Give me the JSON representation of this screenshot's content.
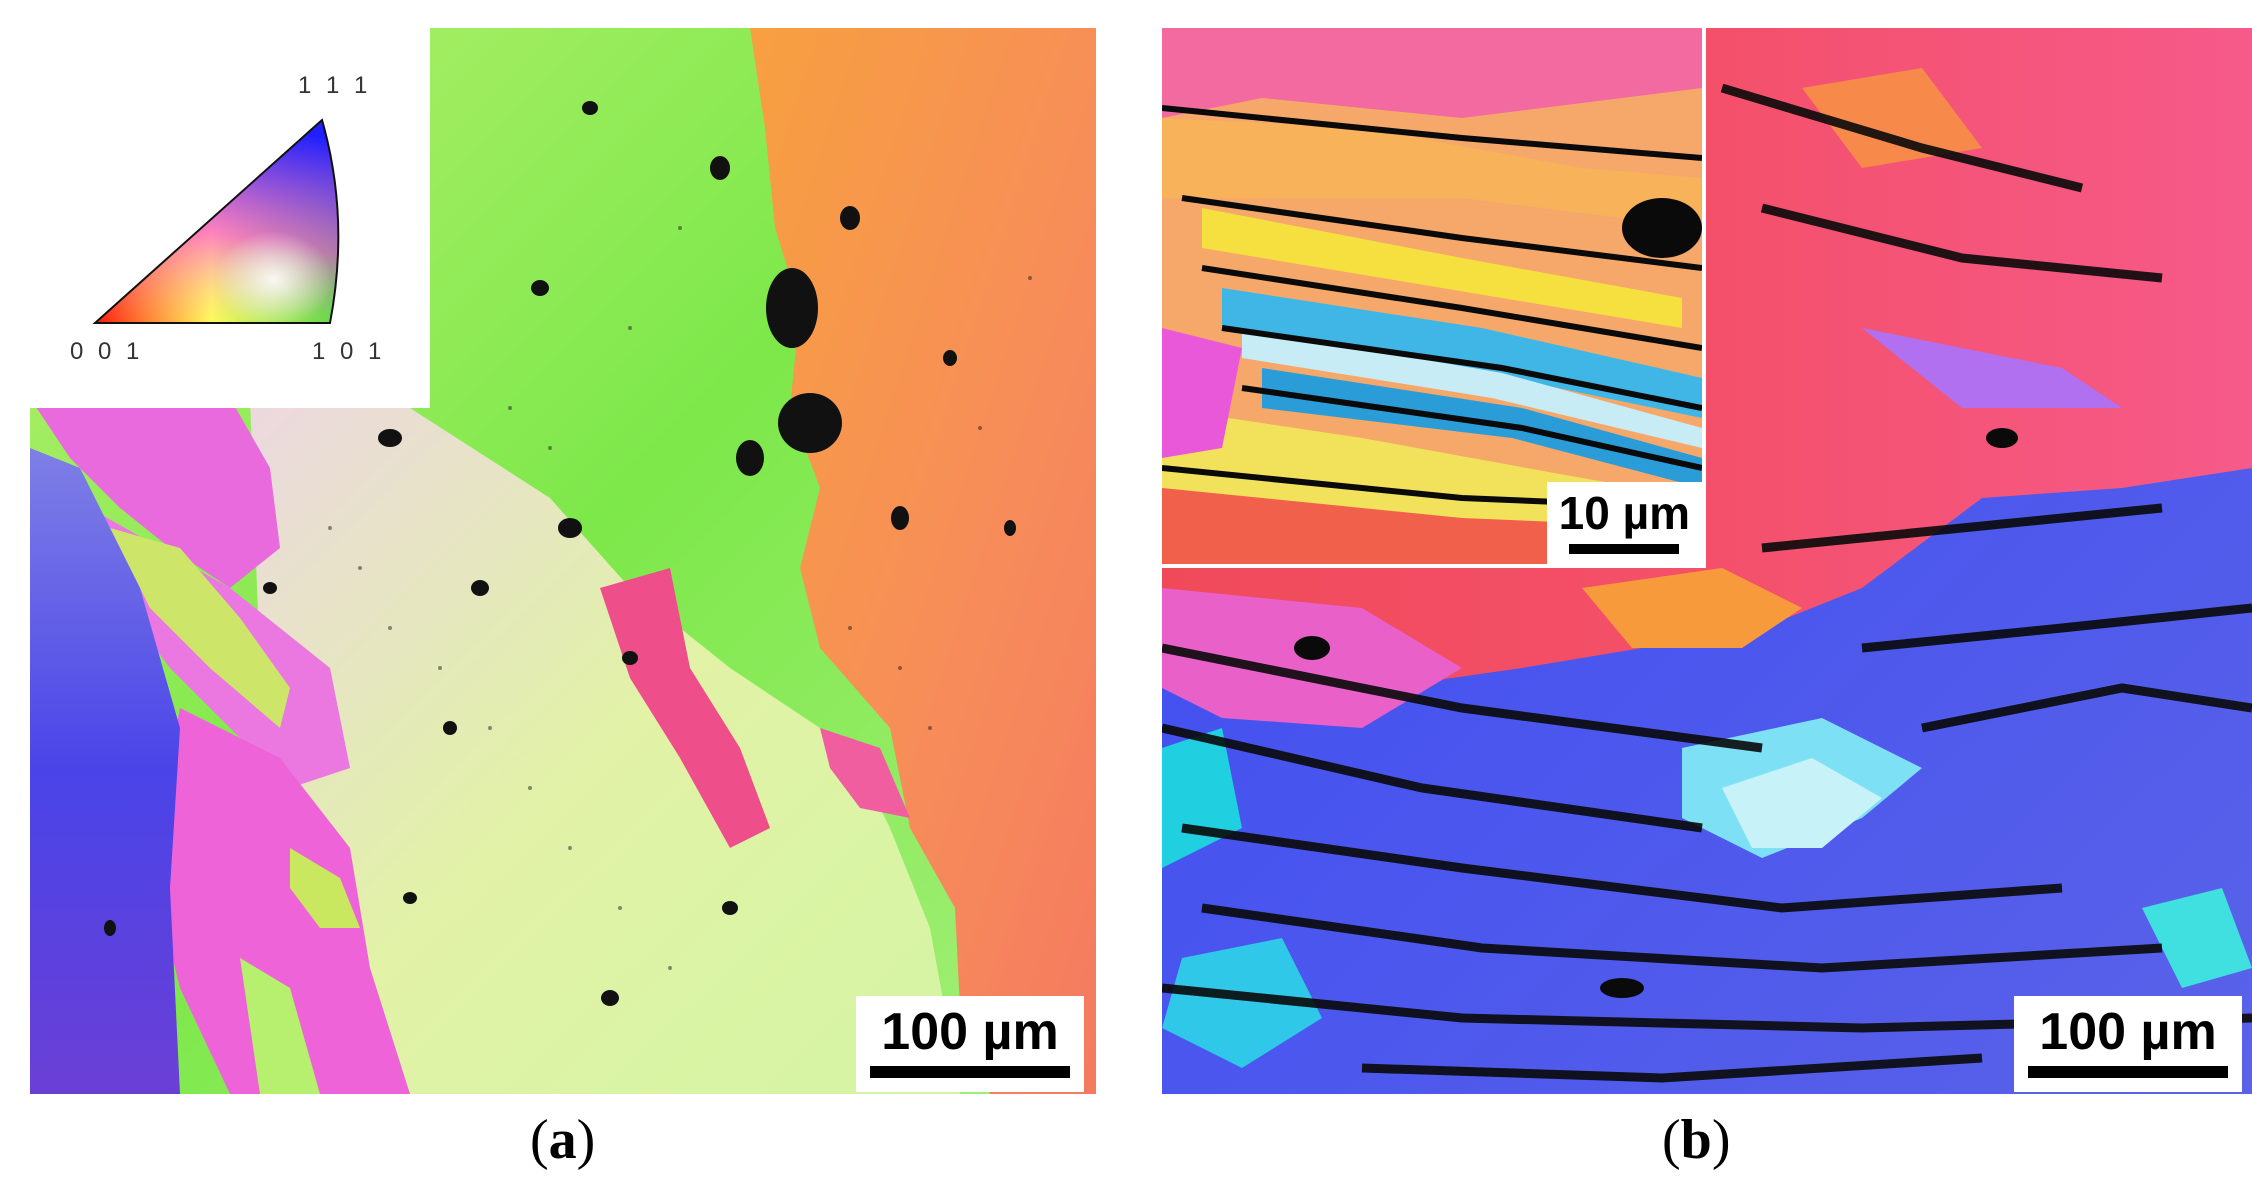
{
  "panel_a": {
    "caption_letter": "a",
    "scale_label": "100 µm"
  },
  "panel_b": {
    "caption_letter": "b",
    "scale_label": "100 µm",
    "inset_scale_label": "10 µm"
  },
  "color_key": {
    "corner_top": "1 1 1",
    "corner_left": "0 0 1",
    "corner_right": "1 0 1"
  }
}
